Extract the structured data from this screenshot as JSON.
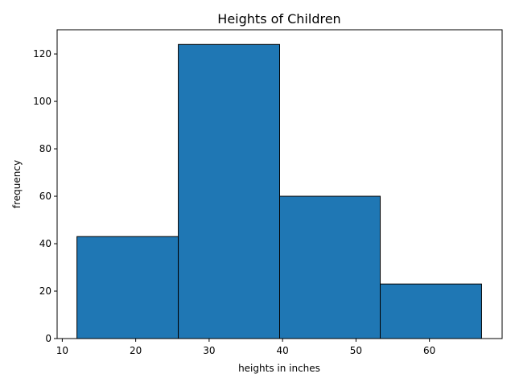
{
  "chart_data": {
    "type": "bar",
    "histogram": true,
    "title": "Heights of Children",
    "xlabel": "heights in inches",
    "ylabel": "frequency",
    "bins": [
      {
        "start": 12.0,
        "end": 25.8,
        "count": 43
      },
      {
        "start": 25.8,
        "end": 39.6,
        "count": 124
      },
      {
        "start": 39.6,
        "end": 53.3,
        "count": 60
      },
      {
        "start": 53.3,
        "end": 67.1,
        "count": 23
      }
    ],
    "xlim": [
      9.3,
      69.9
    ],
    "ylim": [
      0,
      130.2
    ],
    "xticks": [
      10,
      20,
      30,
      40,
      50,
      60
    ],
    "yticks": [
      0,
      20,
      40,
      60,
      80,
      100,
      120
    ],
    "grid": false,
    "bar_color": "#1f77b4",
    "edge_color": "#000000"
  }
}
